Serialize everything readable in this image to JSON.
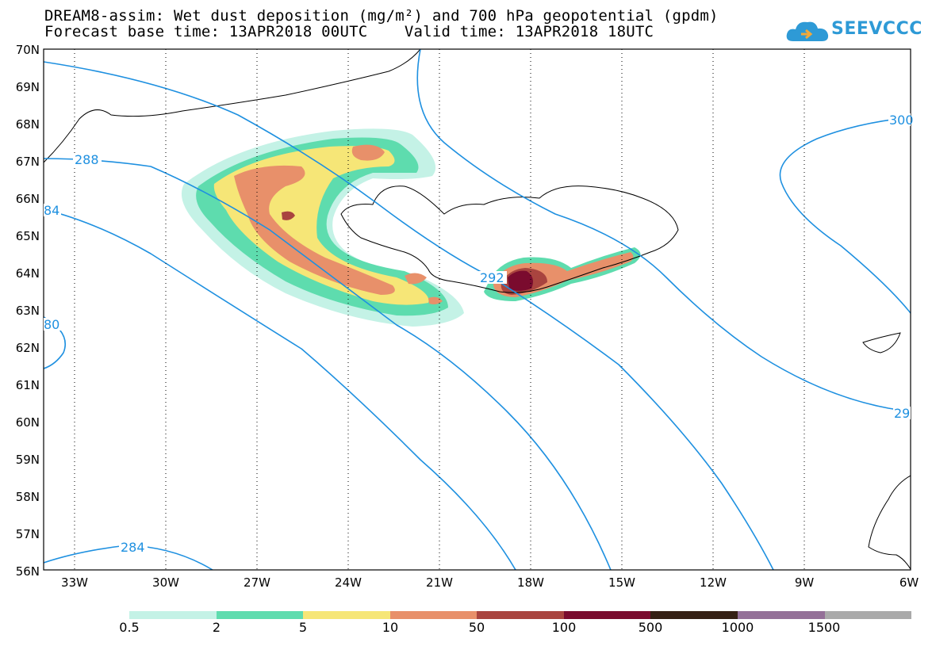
{
  "header": {
    "title_line1": "DREAM8-assim: Wet dust deposition (mg/m²) and 700 hPa geopotential (gpdm)",
    "title_line2": "Forecast base time: 13APR2018 00UTC    Valid time: 13APR2018 18UTC",
    "logo_text": "SEEVCCC"
  },
  "map": {
    "lat_labels": [
      "70N",
      "69N",
      "68N",
      "67N",
      "66N",
      "65N",
      "64N",
      "63N",
      "62N",
      "61N",
      "60N",
      "59N",
      "58N",
      "57N",
      "56N"
    ],
    "lon_labels": [
      "33W",
      "30W",
      "27W",
      "24W",
      "21W",
      "18W",
      "15W",
      "12W",
      "9W",
      "6W"
    ],
    "contour_color": "#1e90e0",
    "contour_labels": [
      "288",
      "84",
      "292",
      "284",
      "300",
      "80",
      "29"
    ]
  },
  "legend": {
    "colors": [
      "#c4f2e6",
      "#5edcae",
      "#f6e677",
      "#e8906a",
      "#a9443f",
      "#7a0b2e",
      "#352014",
      "#947098",
      "#aaaaaa"
    ],
    "labels": [
      "0.5",
      "2",
      "5",
      "10",
      "50",
      "100",
      "500",
      "1000",
      "1500"
    ]
  }
}
